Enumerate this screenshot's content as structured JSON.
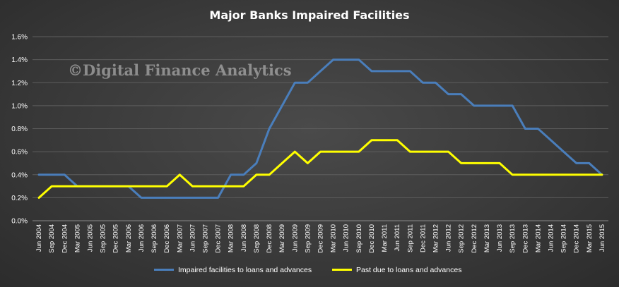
{
  "chart_data": {
    "type": "line",
    "title": "Major Banks Impaired Facilities",
    "watermark": "©Digital Finance Analytics",
    "xlabel": "",
    "ylabel": "",
    "ylim": [
      0,
      1.6
    ],
    "yticks": [
      "0.0%",
      "0.2%",
      "0.4%",
      "0.6%",
      "0.8%",
      "1.0%",
      "1.2%",
      "1.4%",
      "1.6%"
    ],
    "grid": true,
    "legend_position": "bottom",
    "categories": [
      "Jun 2004",
      "Sep 2004",
      "Dec 2004",
      "Mar 2005",
      "Jun 2005",
      "Sep 2005",
      "Dec 2005",
      "Mar 2006",
      "Jun 2006",
      "Sep 2006",
      "Dec 2006",
      "Mar 2007",
      "Jun 2007",
      "Sep 2007",
      "Dec 2007",
      "Mar 2008",
      "Jun 2008",
      "Sep 2008",
      "Dec 2008",
      "Mar 2009",
      "Jun 2009",
      "Sep 2009",
      "Dec 2009",
      "Mar 2010",
      "Jun 2010",
      "Sep 2010",
      "Dec 2010",
      "Mar 2011",
      "Jun 2011",
      "Sep 2011",
      "Dec 2011",
      "Mar 2012",
      "Jun 2012",
      "Sep 2012",
      "Dec 2012",
      "Mar 2013",
      "Jun 2013",
      "Sep 2013",
      "Dec 2013",
      "Mar 2014",
      "Jun 2014",
      "Sep 2014",
      "Dec 2014",
      "Mar 2015",
      "Jun 2015"
    ],
    "series": [
      {
        "name": "Impaired facilities to loans and advances",
        "color": "#4a7ebb",
        "values": [
          0.4,
          0.4,
          0.4,
          0.3,
          0.3,
          0.3,
          0.3,
          0.3,
          0.2,
          0.2,
          0.2,
          0.2,
          0.2,
          0.2,
          0.2,
          0.4,
          0.4,
          0.5,
          0.8,
          1.0,
          1.2,
          1.2,
          1.3,
          1.4,
          1.4,
          1.4,
          1.3,
          1.3,
          1.3,
          1.3,
          1.2,
          1.2,
          1.1,
          1.1,
          1.0,
          1.0,
          1.0,
          1.0,
          0.8,
          0.8,
          0.7,
          0.6,
          0.5,
          0.5,
          0.4
        ]
      },
      {
        "name": "Past due to loans and advances",
        "color": "#ffff00",
        "values": [
          0.2,
          0.3,
          0.3,
          0.3,
          0.3,
          0.3,
          0.3,
          0.3,
          0.3,
          0.3,
          0.3,
          0.4,
          0.3,
          0.3,
          0.3,
          0.3,
          0.3,
          0.4,
          0.4,
          0.5,
          0.6,
          0.5,
          0.6,
          0.6,
          0.6,
          0.6,
          0.7,
          0.7,
          0.7,
          0.6,
          0.6,
          0.6,
          0.6,
          0.5,
          0.5,
          0.5,
          0.5,
          0.4,
          0.4,
          0.4,
          0.4,
          0.4,
          0.4,
          0.4,
          0.4
        ]
      }
    ]
  }
}
